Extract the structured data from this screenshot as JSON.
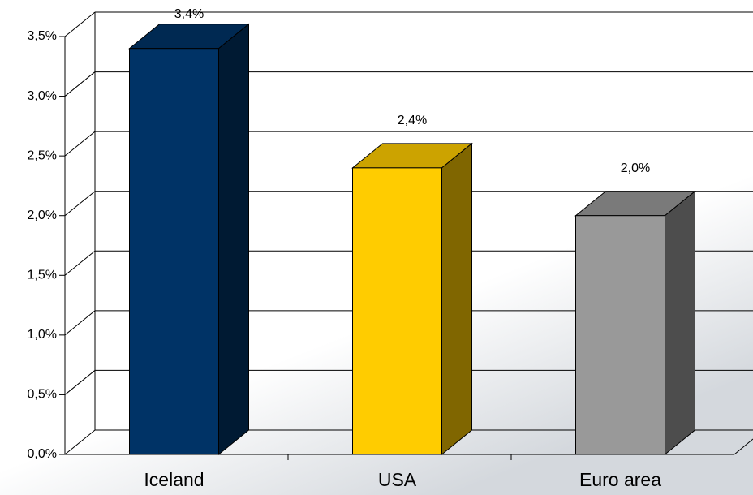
{
  "chart_data": {
    "type": "bar3d",
    "categories": [
      "Iceland",
      "USA",
      "Euro area"
    ],
    "series": [
      {
        "values": [
          3.4,
          2.4,
          2.0
        ],
        "value_labels": [
          "3,4%",
          "2,4%",
          "2,0%"
        ],
        "colors": [
          "#003366",
          "#ffcc00",
          "#999999"
        ]
      }
    ],
    "ylim": [
      0,
      3.5
    ],
    "yticks": [
      {
        "value": 0,
        "label": "0,0%"
      },
      {
        "value": 0.5,
        "label": "0,5%"
      },
      {
        "value": 1,
        "label": "1,0%"
      },
      {
        "value": 1.5,
        "label": "1,5%"
      },
      {
        "value": 2,
        "label": "2,0%"
      },
      {
        "value": 2.5,
        "label": "2,5%"
      },
      {
        "value": 3,
        "label": "3,0%"
      },
      {
        "value": 3.5,
        "label": "3,5%"
      }
    ],
    "grid": true
  }
}
